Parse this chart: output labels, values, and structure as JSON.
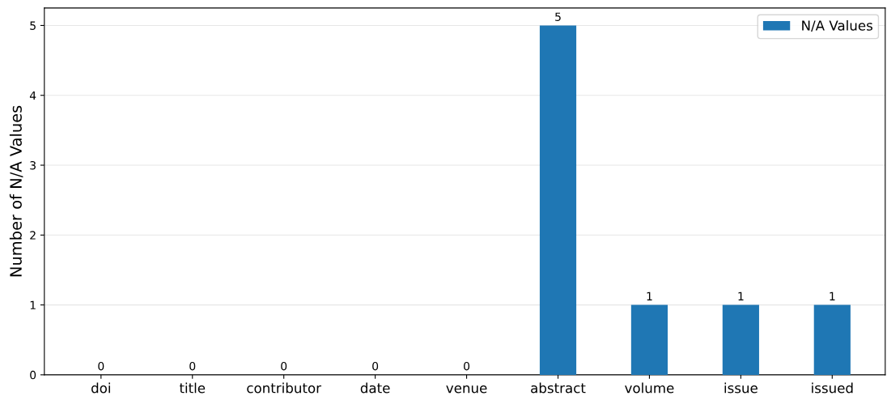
{
  "chart_data": {
    "type": "bar",
    "ylabel": "Number of N/A Values",
    "categories": [
      "doi",
      "title",
      "contributor",
      "date",
      "venue",
      "abstract",
      "volume",
      "issue",
      "issued"
    ],
    "series": [
      {
        "name": "N/A Values",
        "color": "#1f77b4",
        "values": [
          0,
          0,
          0,
          0,
          0,
          5,
          1,
          1,
          1
        ]
      }
    ],
    "ylim": [
      0,
      5.25
    ],
    "yticks": [
      0,
      1,
      2,
      3,
      4,
      5
    ],
    "grid": "y",
    "legend": "top right",
    "data_labels": true
  }
}
